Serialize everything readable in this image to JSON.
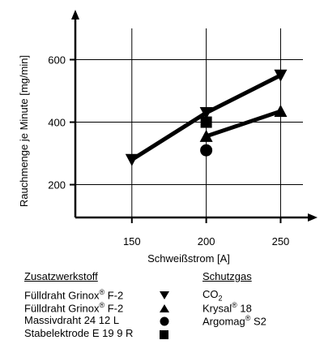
{
  "chart_data": {
    "type": "line",
    "xlabel": "Schweißstrom [A]",
    "ylabel": "Rauchmenge je Minute [mg/min]",
    "xlim": [
      112,
      265
    ],
    "ylim": [
      95,
      700
    ],
    "xticks": [
      150,
      200,
      250
    ],
    "yticks": [
      200,
      400,
      600
    ],
    "grid": true,
    "series": [
      {
        "marker": "triangle-down",
        "x": [
          150,
          200,
          250
        ],
        "y": [
          280,
          430,
          550
        ]
      },
      {
        "marker": "triangle-up",
        "x": [
          200,
          250
        ],
        "y": [
          355,
          435
        ]
      }
    ],
    "points": [
      {
        "marker": "circle",
        "x": 200,
        "y": 310
      },
      {
        "marker": "square",
        "x": 200,
        "y": 400
      }
    ]
  },
  "legend": {
    "left_title": "Zusatzwerkstoff",
    "right_title": "Schutzgas",
    "items": [
      {
        "name": "Fülldraht Grinox",
        "sup": "®",
        "suffix": " F-2",
        "marker": "triangle-down"
      },
      {
        "name": "Fülldraht Grinox",
        "sup": "®",
        "suffix": " F-2",
        "marker": "triangle-up"
      },
      {
        "name": "Massivdraht 24 12 L",
        "sup": "",
        "suffix": "",
        "marker": "circle"
      },
      {
        "name": "Stabelektrode E 19 9 R",
        "sup": "",
        "suffix": "",
        "marker": "square"
      }
    ],
    "gases": [
      {
        "name": "CO",
        "sub": "2",
        "sup": "",
        "suffix": ""
      },
      {
        "name": "Krysal",
        "sub": "",
        "sup": "®",
        "suffix": " 18"
      },
      {
        "name": "Argomag",
        "sub": "",
        "sup": "®",
        "suffix": " S2"
      }
    ]
  }
}
